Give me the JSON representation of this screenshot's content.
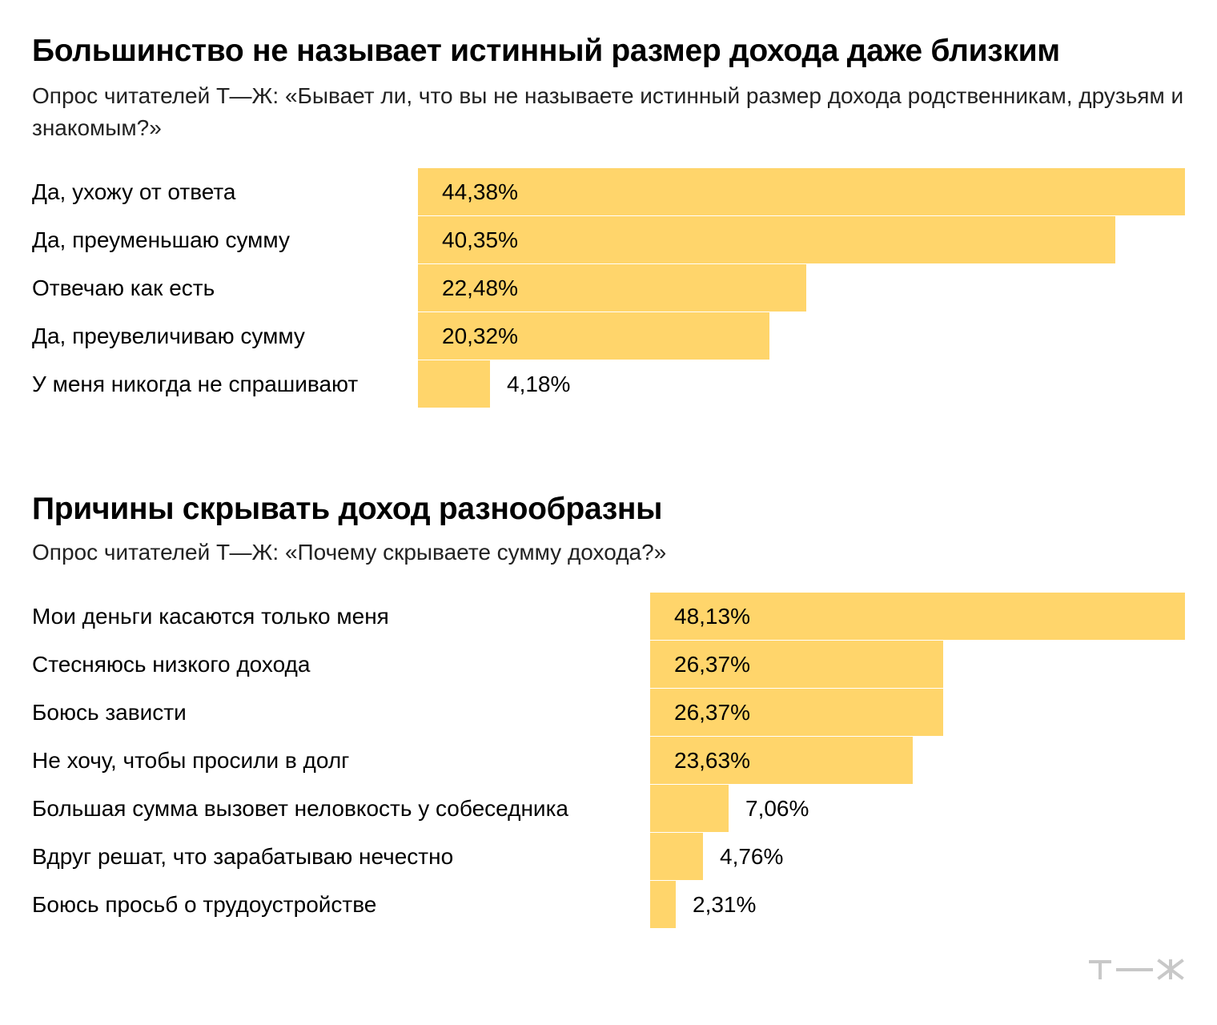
{
  "colors": {
    "bar": "#ffd56b",
    "logo": "#c8c8c8"
  },
  "logo_text": "Т—Ж",
  "charts": [
    {
      "title": "Большинство не называет истинный размер дохода даже близким",
      "subtitle": "Опрос читателей Т—Ж: «Бывает ли, что вы не называете истинный размер дохода родственникам, друзьям и знакомым?»"
    },
    {
      "title": "Причины скрывать доход разнообразны",
      "subtitle": "Опрос читателей Т—Ж: «Почему скрываете сумму дохода?»"
    }
  ],
  "chart_data": [
    {
      "type": "bar",
      "orientation": "horizontal",
      "title": "Большинство не называет истинный размер дохода даже близким",
      "subtitle": "Опрос читателей Т—Ж: «Бывает ли, что вы не называете истинный размер дохода родственникам, друзьям и знакомым?»",
      "categories": [
        "Да, ухожу от ответа",
        "Да, преуменьшаю сумму",
        "Отвечаю как есть",
        "Да, преувеличиваю сумму",
        "У меня никогда не спрашивают"
      ],
      "values": [
        44.38,
        40.35,
        22.48,
        20.32,
        4.18
      ],
      "value_labels": [
        "44,38%",
        "40,35%",
        "22,48%",
        "20,32%",
        "4,18%"
      ],
      "unit": "%"
    },
    {
      "type": "bar",
      "orientation": "horizontal",
      "title": "Причины скрывать доход разнообразны",
      "subtitle": "Опрос читателей Т—Ж: «Почему скрываете сумму дохода?»",
      "categories": [
        "Мои деньги касаются только меня",
        "Стесняюсь низкого дохода",
        "Боюсь зависти",
        "Не хочу, чтобы просили в долг",
        "Большая сумма вызовет неловкость у собеседника",
        "Вдруг решат, что зарабатываю нечестно",
        "Боюсь просьб о трудоустройстве"
      ],
      "values": [
        48.13,
        26.37,
        26.37,
        23.63,
        7.06,
        4.76,
        2.31
      ],
      "value_labels": [
        "48,13%",
        "26,37%",
        "26,37%",
        "23,63%",
        "7,06%",
        "4,76%",
        "2,31%"
      ],
      "unit": "%"
    }
  ]
}
